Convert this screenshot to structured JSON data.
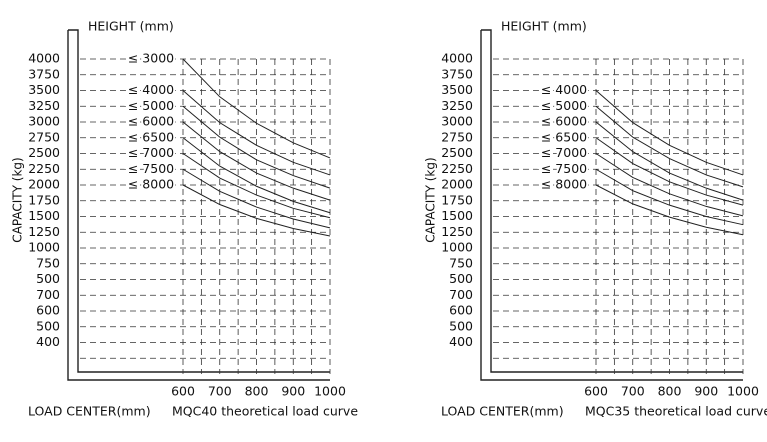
{
  "chart_data": [
    {
      "type": "line",
      "title": "MQC40 theoretical load curve",
      "legend_title": "HEIGHT (mm)",
      "y_label": "CAPACITY (kg)",
      "x_label": "LOAD CENTER(mm)",
      "row_labels": [
        "4000",
        "3750",
        "3500",
        "3250",
        "3000",
        "2750",
        "2500",
        "2250",
        "2000",
        "1750",
        "1500",
        "1250",
        "1000",
        "750",
        "500",
        "700",
        "600",
        "500",
        "400",
        null
      ],
      "x": [
        600,
        700,
        800,
        900,
        1000
      ],
      "xlim": [
        600,
        1000
      ],
      "xticks": [
        600,
        700,
        800,
        900,
        1000
      ],
      "ylim": [
        -1000,
        4000
      ],
      "grid": true,
      "series": [
        {
          "name": "≤ 3000",
          "values": [
            4000,
            3400,
            2980,
            2670,
            2430
          ]
        },
        {
          "name": "≤ 4000",
          "values": [
            3500,
            2990,
            2630,
            2360,
            2160
          ]
        },
        {
          "name": "≤ 5000",
          "values": [
            3250,
            2760,
            2400,
            2150,
            1950
          ]
        },
        {
          "name": "≤ 6000",
          "values": [
            3000,
            2530,
            2190,
            1950,
            1760
          ]
        },
        {
          "name": "≤ 6500",
          "values": [
            2750,
            2300,
            1980,
            1740,
            1560
          ]
        },
        {
          "name": "≤ 7000",
          "values": [
            2500,
            2110,
            1840,
            1630,
            1480
          ]
        },
        {
          "name": "≤ 7500",
          "values": [
            2250,
            1900,
            1650,
            1460,
            1320
          ]
        },
        {
          "name": "≤ 8000",
          "values": [
            2000,
            1690,
            1470,
            1310,
            1190
          ]
        }
      ]
    },
    {
      "type": "line",
      "title": "MQC35 theoretical load curve",
      "legend_title": "HEIGHT (mm)",
      "y_label": "CAPACITY (kg)",
      "x_label": "LOAD CENTER(mm)",
      "row_labels": [
        "4000",
        "3750",
        "3500",
        "3250",
        "3000",
        "2750",
        "2500",
        "2250",
        "2000",
        "1750",
        "1500",
        "1250",
        "1000",
        "750",
        "500",
        "700",
        "600",
        "500",
        "400",
        null
      ],
      "x": [
        600,
        700,
        800,
        900,
        1000
      ],
      "xlim": [
        600,
        1000
      ],
      "xticks": [
        600,
        700,
        800,
        900,
        1000
      ],
      "ylim": [
        -1000,
        4000
      ],
      "grid": true,
      "series": [
        {
          "name": "≤ 4000",
          "values": [
            3500,
            2990,
            2630,
            2360,
            2160
          ]
        },
        {
          "name": "≤ 5000",
          "values": [
            3250,
            2760,
            2420,
            2160,
            1970
          ]
        },
        {
          "name": "≤ 6000",
          "values": [
            3000,
            2530,
            2190,
            1950,
            1760
          ]
        },
        {
          "name": "≤ 6500",
          "values": [
            2750,
            2340,
            2050,
            1840,
            1680
          ]
        },
        {
          "name": "≤ 7000",
          "values": [
            2500,
            2120,
            1860,
            1660,
            1510
          ]
        },
        {
          "name": "≤ 7500",
          "values": [
            2250,
            1910,
            1680,
            1500,
            1370
          ]
        },
        {
          "name": "≤ 8000",
          "values": [
            2000,
            1700,
            1490,
            1330,
            1210
          ]
        }
      ]
    }
  ]
}
